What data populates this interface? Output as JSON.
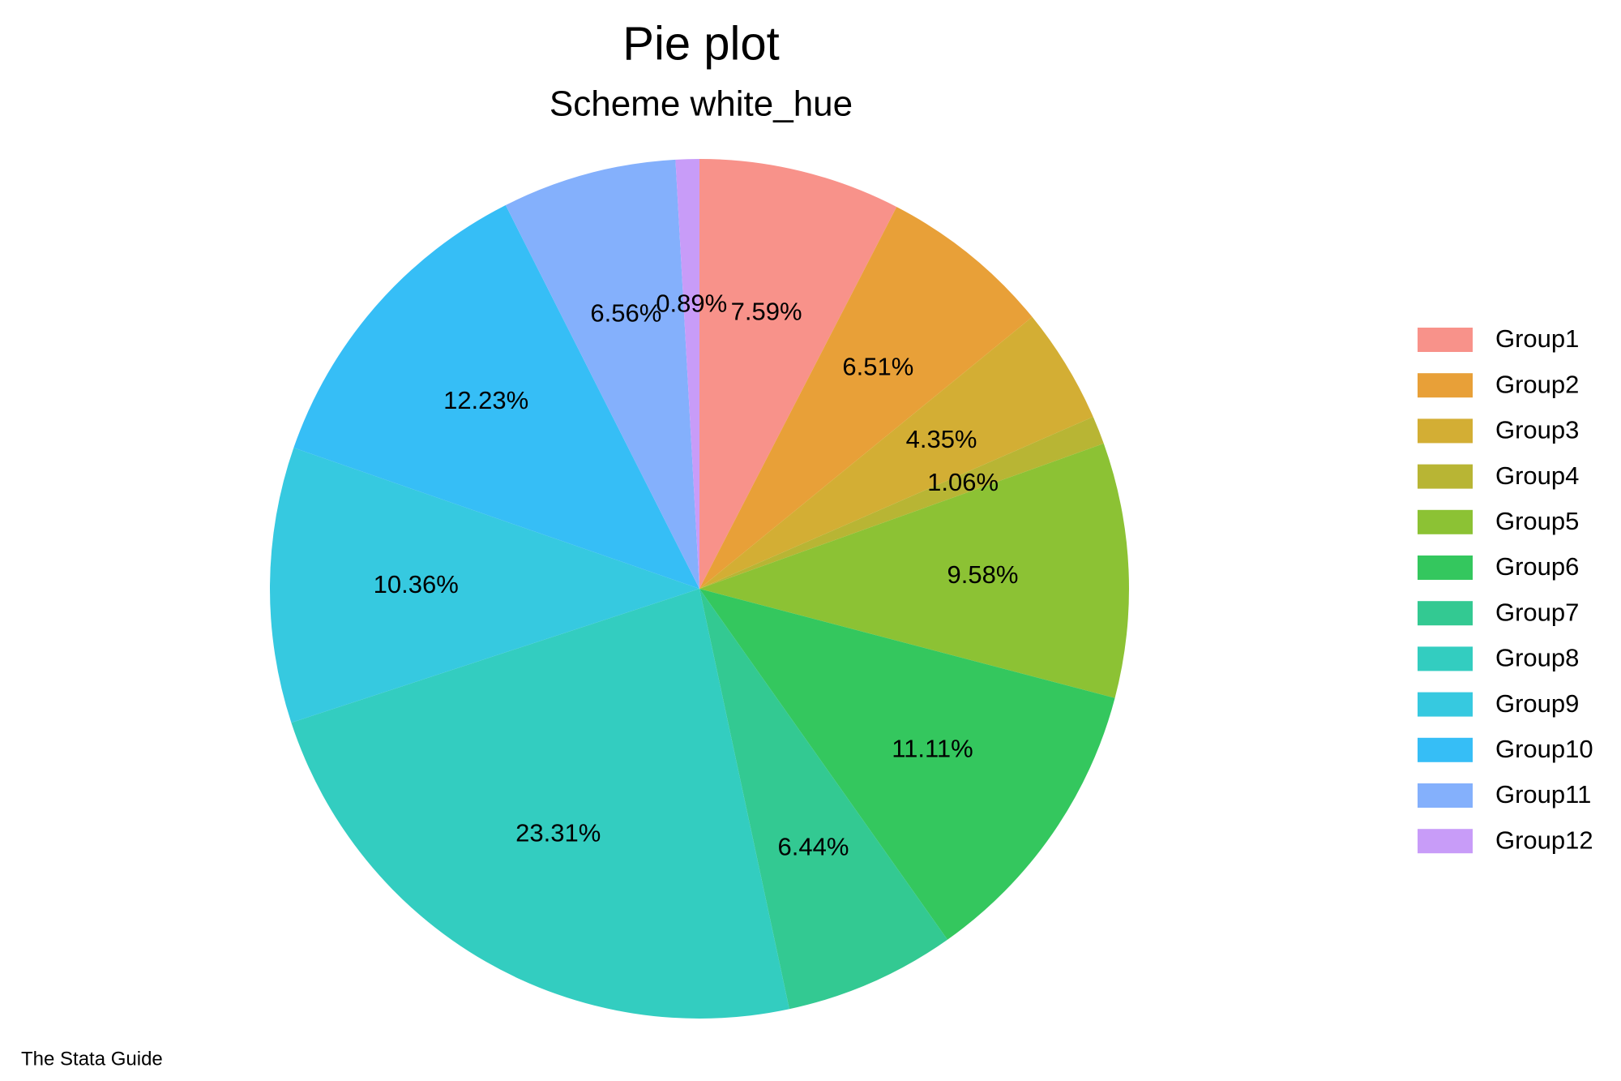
{
  "chart_data": {
    "type": "pie",
    "title": "Pie plot",
    "subtitle": "Scheme white_hue",
    "caption": "The Stata Guide",
    "categories": [
      "Group1",
      "Group2",
      "Group3",
      "Group4",
      "Group5",
      "Group6",
      "Group7",
      "Group8",
      "Group9",
      "Group10",
      "Group11",
      "Group12"
    ],
    "values": [
      7.59,
      6.51,
      4.35,
      1.06,
      9.58,
      11.11,
      6.44,
      23.31,
      10.36,
      12.23,
      6.56,
      0.89
    ],
    "value_labels": [
      "7.59%",
      "6.51%",
      "4.35%",
      "1.06%",
      "9.58%",
      "11.11%",
      "6.44%",
      "23.31%",
      "10.36%",
      "12.23%",
      "6.56%",
      "0.89%"
    ],
    "colors": [
      "#f8928a",
      "#e8a038",
      "#d3ae34",
      "#b8b534",
      "#8cc234",
      "#34c75e",
      "#33c992",
      "#33cdc0",
      "#36c9e0",
      "#36bef6",
      "#84b0fc",
      "#c89cf8"
    ],
    "legend": "right"
  }
}
